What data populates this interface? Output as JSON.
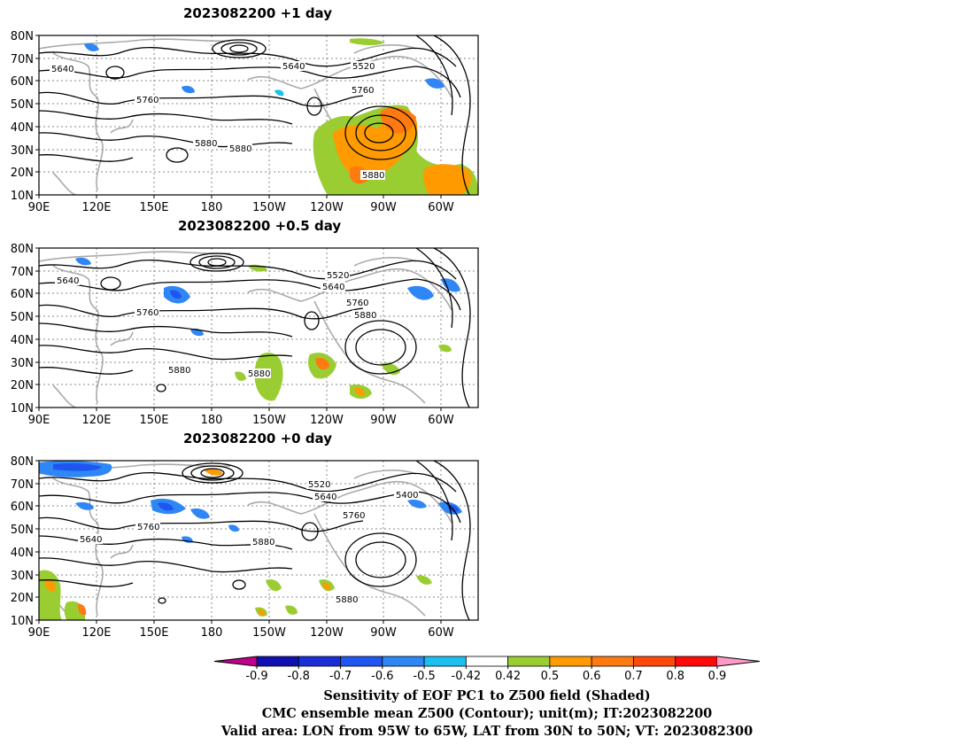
{
  "panels": [
    {
      "title": "2023082200  +1  day",
      "contour_labels": [
        "5640",
        "5640",
        "5520",
        "5760",
        "5760",
        "5880",
        "5880",
        "5880"
      ]
    },
    {
      "title": "2023082200  +0.5  day",
      "contour_labels": [
        "5640",
        "5520",
        "5640",
        "5760",
        "5760",
        "5880",
        "5880",
        "5880"
      ]
    },
    {
      "title": "2023082200  +0  day",
      "contour_labels": [
        "5520",
        "5640",
        "5400",
        "5760",
        "5640",
        "5760",
        "5880",
        "5880"
      ]
    }
  ],
  "lat_labels": [
    "80N",
    "70N",
    "60N",
    "50N",
    "40N",
    "30N",
    "20N",
    "10N"
  ],
  "lon_labels": [
    "90E",
    "120E",
    "150E",
    "180",
    "150W",
    "120W",
    "90W",
    "60W"
  ],
  "colorbar": {
    "colors": [
      "#c0008a",
      "#1010b0",
      "#1a2ed8",
      "#1f55f0",
      "#2f86f5",
      "#1cc0f0",
      "#ffffff",
      "#9acd32",
      "#ff9a00",
      "#ff7a10",
      "#ff4a0a",
      "#ff0a0a",
      "#ff9ac8"
    ],
    "tick_labels": [
      "-0.9",
      "-0.8",
      "-0.7",
      "-0.6",
      "-0.5",
      "-0.42",
      "0.42",
      "0.5",
      "0.6",
      "0.7",
      "0.8",
      "0.9"
    ]
  },
  "footer": {
    "line1": "Sensitivity of EOF PC1 to Z500 field (Shaded)",
    "line2": "CMC ensemble mean Z500 (Contour); unit(m); IT:2023082200",
    "line3": "Valid area: LON from 95W to 65W, LAT from 30N to 50N; VT: 2023082300"
  }
}
